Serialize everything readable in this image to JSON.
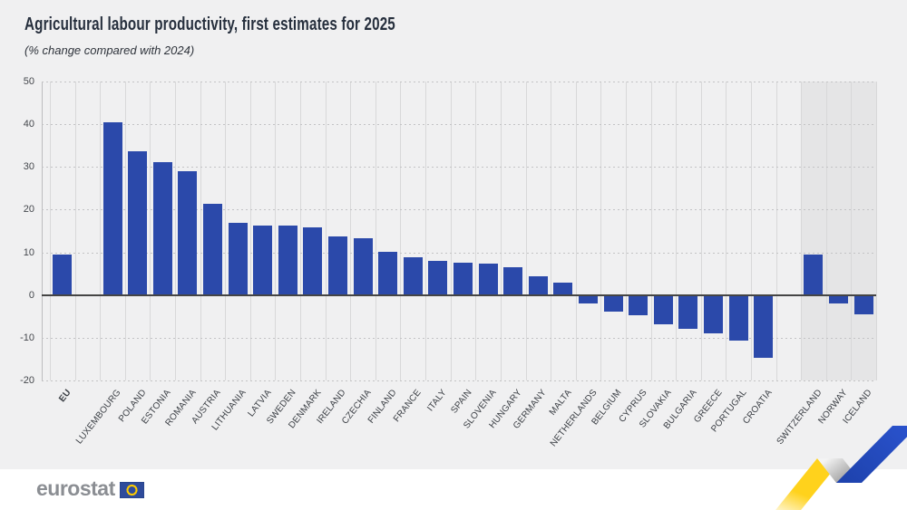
{
  "header": {
    "title": "Agricultural labour productivity, first estimates for 2025",
    "subtitle": "(% change compared with 2024)"
  },
  "footer": {
    "brand_wordmark": "eurostat"
  },
  "colors": {
    "page_background": "#f0f0f1",
    "bar": "#2b49aa",
    "efta_region_background": "#e5e5e6",
    "zero_line": "#454545",
    "dashed_gridline": "#c3c3c5",
    "vertical_gridline": "#d8d8d9",
    "title_text": "#262f3d",
    "axis_text": "#44474c",
    "brand_text": "#8b8e93",
    "logo_yellow": "#ffd21c",
    "logo_blue": "#2449c8",
    "flag_blue": "#2e4b9b",
    "flag_star_yellow": "#ffcc00"
  },
  "chart_data": {
    "type": "bar",
    "title": "Agricultural labour productivity, first estimates for 2025",
    "subtitle": "(% change compared with 2024)",
    "ylim": [
      -20,
      50
    ],
    "yticks": [
      50,
      40,
      30,
      20,
      10,
      0,
      -10,
      -20
    ],
    "grid": true,
    "legend": false,
    "bar_color": "#2b49aa",
    "highlight_region": {
      "categories": [
        "SWITZERLAND",
        "NORWAY",
        "ICELAND"
      ],
      "background": "#e5e5e6"
    },
    "categories": [
      "EU",
      "",
      "LUXEMBOURG",
      "POLAND",
      "ESTONIA",
      "ROMANIA",
      "AUSTRIA",
      "LITHUANIA",
      "LATVIA",
      "SWEDEN",
      "DENMARK",
      "IRELAND",
      "CZECHIA",
      "FINLAND",
      "FRANCE",
      "ITALY",
      "SPAIN",
      "SLOVENIA",
      "HUNGARY",
      "GERMANY",
      "MALTA",
      "NETHERLANDS",
      "BELGIUM",
      "CYPRUS",
      "SLOVAKIA",
      "BULGARIA",
      "GREECE",
      "PORTUGAL",
      "CROATIA",
      "",
      "SWITZERLAND",
      "NORWAY",
      "ICELAND"
    ],
    "values": [
      9.5,
      null,
      40.4,
      33.7,
      31.2,
      29.1,
      21.4,
      16.9,
      16.3,
      16.3,
      15.9,
      13.7,
      13.3,
      10.2,
      8.8,
      7.9,
      7.5,
      7.4,
      6.6,
      4.4,
      2.9,
      -2.0,
      -3.9,
      -4.7,
      -6.8,
      -8.0,
      -8.9,
      -10.7,
      -14.8,
      null,
      9.4,
      -2.0,
      -4.6
    ]
  }
}
